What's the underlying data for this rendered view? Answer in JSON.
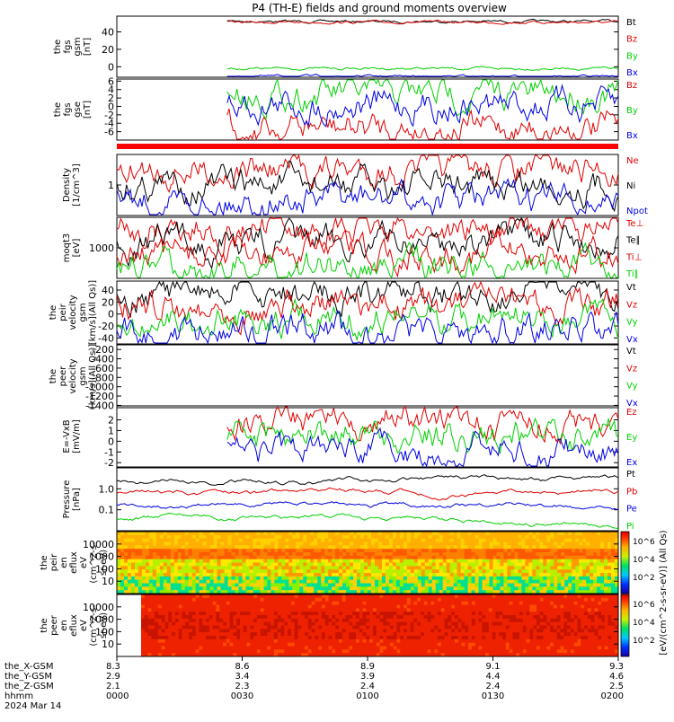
{
  "title": "P4 (TH-E) fields and ground moments overview",
  "colors": {
    "black": "#000000",
    "red": "#e00000",
    "green": "#00d000",
    "blue": "#0000e0"
  },
  "chart_data": [
    {
      "type": "line",
      "panel": "fgs-gsm",
      "ylabel": [
        "the",
        "fgs",
        "gsm",
        "[nT]"
      ],
      "yticks": [
        "40",
        "20",
        "0"
      ],
      "ylim": [
        -12,
        58
      ],
      "series": [
        {
          "name": "Bt",
          "color": "black",
          "level": 52,
          "start": 0.22
        },
        {
          "name": "Bz",
          "color": "red",
          "level": 51,
          "start": 0.22
        },
        {
          "name": "By",
          "color": "green",
          "level": -2,
          "start": 0.22
        },
        {
          "name": "Bx",
          "color": "blue",
          "level": -11,
          "start": 0.22
        }
      ]
    },
    {
      "type": "line",
      "panel": "fgs-gse",
      "ylabel": [
        "the",
        "fgs",
        "gse",
        "[nT]"
      ],
      "yticks": [
        "6",
        "4",
        "2",
        "0",
        "-2",
        "-4",
        "-6"
      ],
      "ylim": [
        -8,
        6.5
      ],
      "series": [
        {
          "name": "Bz",
          "color": "red",
          "level": -5,
          "start": 0.22
        },
        {
          "name": "By",
          "color": "green",
          "level": 3,
          "start": 0.22
        },
        {
          "name": "Bx",
          "color": "blue",
          "level": 0.5,
          "start": 0.22
        }
      ]
    },
    {
      "type": "line",
      "panel": "density",
      "ylabel": [
        "Density",
        "[1/cm^3]"
      ],
      "log": true,
      "yticks": [
        "1"
      ],
      "series": [
        {
          "name": "Ne",
          "color": "red"
        },
        {
          "name": "Ni",
          "color": "black"
        },
        {
          "name": "Npot",
          "color": "blue"
        }
      ]
    },
    {
      "type": "line",
      "panel": "temperature",
      "ylabel": [
        "moqt3",
        "[eV]"
      ],
      "log": true,
      "yticks": [
        "1000"
      ],
      "series": [
        {
          "name": "Te⊥",
          "color": "red"
        },
        {
          "name": "Te∥",
          "color": "black"
        },
        {
          "name": "Ti⊥",
          "color": "red"
        },
        {
          "name": "Ti∥",
          "color": "green"
        }
      ]
    },
    {
      "type": "line",
      "panel": "peir-velocity",
      "ylabel": [
        "the",
        "peir",
        "velocity",
        "gsm",
        "[km/s](All Qs)]"
      ],
      "yticks": [
        "40",
        "20",
        "0",
        "-20",
        "-40"
      ],
      "ylim": [
        -50,
        55
      ],
      "series": [
        {
          "name": "Vt",
          "color": "black"
        },
        {
          "name": "Vz",
          "color": "red"
        },
        {
          "name": "Vy",
          "color": "green"
        },
        {
          "name": "Vx",
          "color": "blue"
        }
      ]
    },
    {
      "type": "line",
      "panel": "peer-velocity",
      "ylabel": [
        "the",
        "peer",
        "velocity",
        "gsm",
        "[km/s](All Qs)]"
      ],
      "yticks": [
        "-200",
        "-400",
        "-600",
        "-800",
        "-1000",
        "-1200",
        "-1400"
      ],
      "ylim": [
        -1450,
        -100
      ],
      "series": [
        {
          "name": "Vt",
          "color": "black"
        },
        {
          "name": "Vz",
          "color": "red"
        },
        {
          "name": "Vy",
          "color": "green"
        },
        {
          "name": "Vx",
          "color": "blue"
        }
      ]
    },
    {
      "type": "line",
      "panel": "efield",
      "ylabel": [
        "E=-VxB",
        "[mV/m]"
      ],
      "yticks": [
        "2",
        "1",
        "0",
        "-1",
        "-2"
      ],
      "ylim": [
        -2.4,
        3.3
      ],
      "series": [
        {
          "name": "Ez",
          "color": "red",
          "start": 0.22
        },
        {
          "name": "Ey",
          "color": "green",
          "start": 0.22
        },
        {
          "name": "Ex",
          "color": "blue",
          "start": 0.22
        }
      ]
    },
    {
      "type": "line",
      "panel": "pressure",
      "ylabel": [
        "Pressure",
        "[nPa]"
      ],
      "log": true,
      "yticks": [
        "1.0",
        "0.1"
      ],
      "series": [
        {
          "name": "Pt",
          "color": "black"
        },
        {
          "name": "Pb",
          "color": "red"
        },
        {
          "name": "Pe",
          "color": "blue"
        },
        {
          "name": "Pi",
          "color": "green"
        }
      ]
    },
    {
      "type": "heatmap",
      "panel": "peir-spectrogram",
      "ylabel": [
        "the",
        "peir",
        "en",
        "eflux",
        "eV",
        "(cm^2-s-",
        "sr-eV)"
      ],
      "yticks": [
        "10000",
        "1000",
        "100",
        "10"
      ]
    },
    {
      "type": "heatmap",
      "panel": "peer-spectrogram",
      "ylabel": [
        "the",
        "peer",
        "en",
        "eflux",
        "eV",
        "(cm^2-s-",
        "sr-eV)"
      ],
      "yticks": [
        "10000",
        "1000",
        "100",
        "10"
      ]
    }
  ],
  "colorbar": {
    "label": "[eV/(cm^2-s-sr-eV)] (All Qs)",
    "top_ticks": [
      "10^6",
      "10^4",
      "10^2"
    ],
    "bottom_ticks": [
      "10^6",
      "10^4",
      "10^2"
    ]
  },
  "x_axis": {
    "row_labels": [
      "the_X-GSM",
      "the_Y-GSM",
      "the_Z-GSM",
      "hhmm",
      "2024 Mar 14"
    ],
    "columns": [
      {
        "values": [
          "8.3",
          "2.9",
          "2.1",
          "0000"
        ]
      },
      {
        "values": [
          "8.6",
          "3.4",
          "2.3",
          "0030"
        ]
      },
      {
        "values": [
          "8.9",
          "3.9",
          "2.4",
          "0100"
        ]
      },
      {
        "values": [
          "9.1",
          "4.4",
          "2.4",
          "0130"
        ]
      },
      {
        "values": [
          "9.3",
          "4.6",
          "2.5",
          "0200"
        ]
      }
    ]
  }
}
